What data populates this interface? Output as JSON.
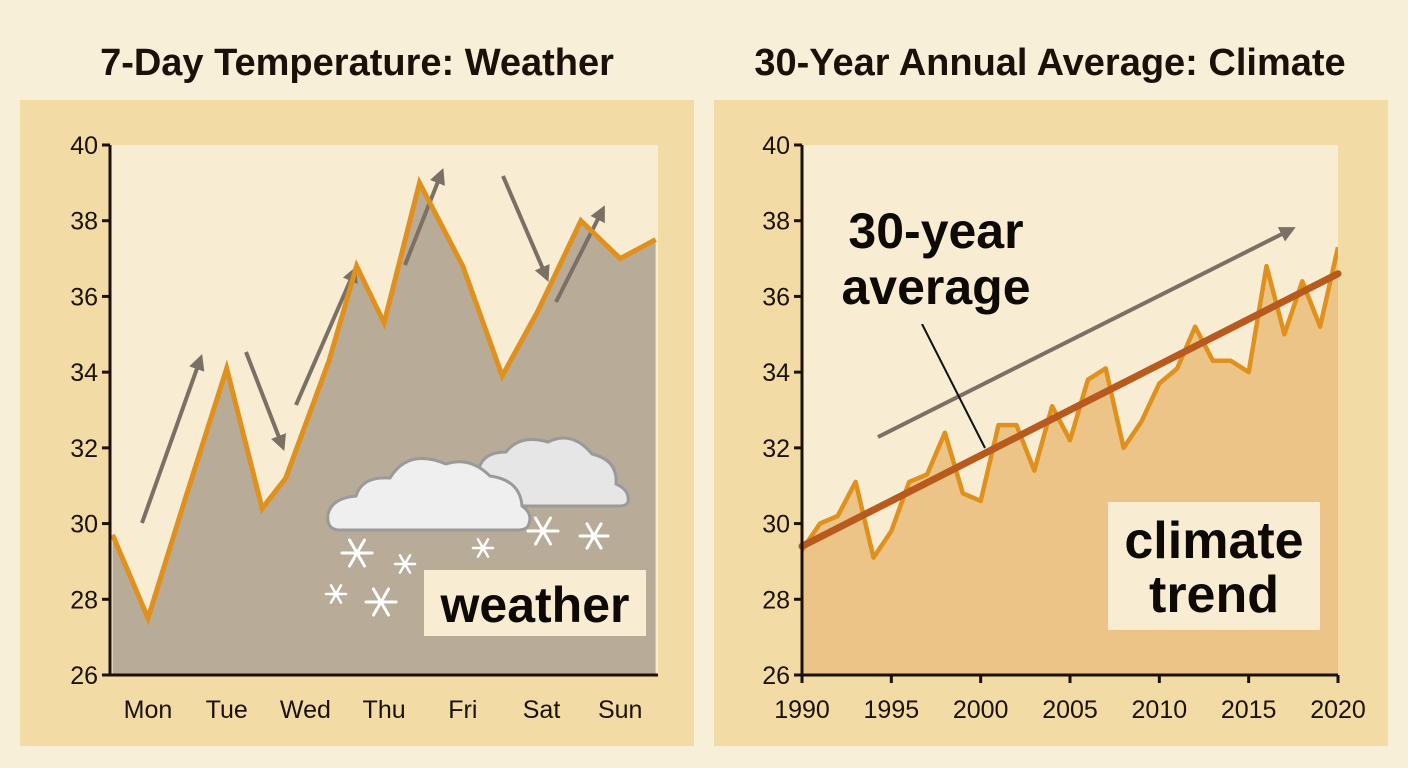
{
  "colors": {
    "page_bg": "#f8efd9",
    "panel_bg": "#f3dba6",
    "plot_bg": "#f8ecd2",
    "weather_fill": "#b8ac98",
    "weather_line": "#e0901c",
    "climate_fill": "#ecc488",
    "climate_line": "#e0901c",
    "trend_line": "#b85a1e",
    "arrow": "#7a7064",
    "label_box": "#f8ecd2"
  },
  "icons": [
    "cloud-icon",
    "snowflake-icon",
    "arrow-icon"
  ],
  "chart_data": [
    {
      "type": "line",
      "title": "7-Day Temperature: Weather",
      "categories": [
        "Mon",
        "Tue",
        "Wed",
        "Thu",
        "Fri",
        "Sat",
        "Sun"
      ],
      "x": [
        -0.45,
        0,
        0.45,
        1,
        1.45,
        1.75,
        2.3,
        2.65,
        3,
        3.45,
        4,
        4.5,
        4.95,
        5.5,
        6,
        6.45
      ],
      "values": [
        29.7,
        27.5,
        30.5,
        34.1,
        30.4,
        31.2,
        34.3,
        36.8,
        35.3,
        39.0,
        36.8,
        33.9,
        35.6,
        38.0,
        37.0,
        37.5
      ],
      "ylim": [
        26,
        40
      ],
      "yticks": [
        "26",
        "28",
        "30",
        "32",
        "34",
        "36",
        "38",
        "40"
      ],
      "xlabel": "",
      "ylabel": "",
      "fill_under": true,
      "annotation": "weather"
    },
    {
      "type": "line",
      "title": "30-Year Annual Average: Climate",
      "x": [
        1990,
        1991,
        1992,
        1993,
        1994,
        1995,
        1996,
        1997,
        1998,
        1999,
        2000,
        2001,
        2002,
        2003,
        2004,
        2005,
        2006,
        2007,
        2008,
        2009,
        2010,
        2011,
        2012,
        2013,
        2014,
        2015,
        2016,
        2017,
        2018,
        2019,
        2020
      ],
      "values": [
        29.3,
        30.0,
        30.2,
        31.1,
        29.1,
        29.8,
        31.1,
        31.3,
        32.4,
        30.8,
        30.6,
        32.6,
        32.6,
        31.4,
        33.1,
        32.2,
        33.8,
        34.1,
        32.0,
        32.7,
        33.7,
        34.1,
        35.2,
        34.3,
        34.3,
        34.0,
        36.8,
        35.0,
        36.4,
        35.2,
        37.3
      ],
      "series": [
        {
          "name": "30-year average",
          "type": "trend",
          "x": [
            1990,
            2020
          ],
          "values": [
            29.4,
            36.6
          ]
        }
      ],
      "ylim": [
        26,
        40
      ],
      "xlim": [
        1990,
        2020
      ],
      "yticks": [
        "26",
        "28",
        "30",
        "32",
        "34",
        "36",
        "38",
        "40"
      ],
      "xticks": [
        "1990",
        "1995",
        "2000",
        "2005",
        "2010",
        "2015",
        "2020"
      ],
      "xlabel": "",
      "ylabel": "",
      "fill_under": true,
      "annotations": {
        "average_label": [
          "30-year",
          "average"
        ],
        "trend_label": [
          "climate",
          "trend"
        ]
      }
    }
  ]
}
